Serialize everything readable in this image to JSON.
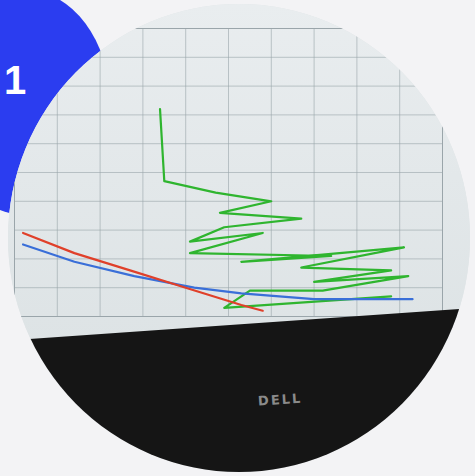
{
  "badge": "1",
  "monitor_brand": "DELL",
  "chart_data": {
    "type": "line",
    "xlim": [
      0,
      100
    ],
    "ylim": [
      0,
      100
    ],
    "xticks": [
      0,
      10,
      20,
      30,
      40,
      50,
      60,
      70,
      80,
      90,
      100
    ],
    "yticks": [
      0,
      10,
      20,
      30,
      40,
      50,
      60,
      70,
      80,
      90,
      100
    ],
    "grid": true,
    "tick_labels": false,
    "series": [
      {
        "color": "#2fb52f",
        "x": [
          34,
          35,
          47,
          60,
          48,
          67,
          49,
          41,
          58,
          41,
          74,
          53,
          91,
          67,
          88,
          70,
          92,
          72,
          55,
          49,
          88
        ],
        "values": [
          72,
          47,
          43,
          40,
          36,
          34,
          31,
          26,
          29,
          22,
          21,
          19,
          24,
          17,
          16,
          12,
          14,
          9,
          9,
          3,
          7
        ]
      },
      {
        "color": "#3a6fd8",
        "x": [
          2,
          14,
          28,
          42,
          53,
          70,
          93
        ],
        "values": [
          25,
          19,
          14,
          10,
          8,
          6,
          6
        ]
      },
      {
        "color": "#e0402a",
        "x": [
          2,
          14,
          27,
          40,
          53,
          58
        ],
        "values": [
          29,
          22,
          16,
          10,
          4,
          2
        ]
      }
    ]
  }
}
